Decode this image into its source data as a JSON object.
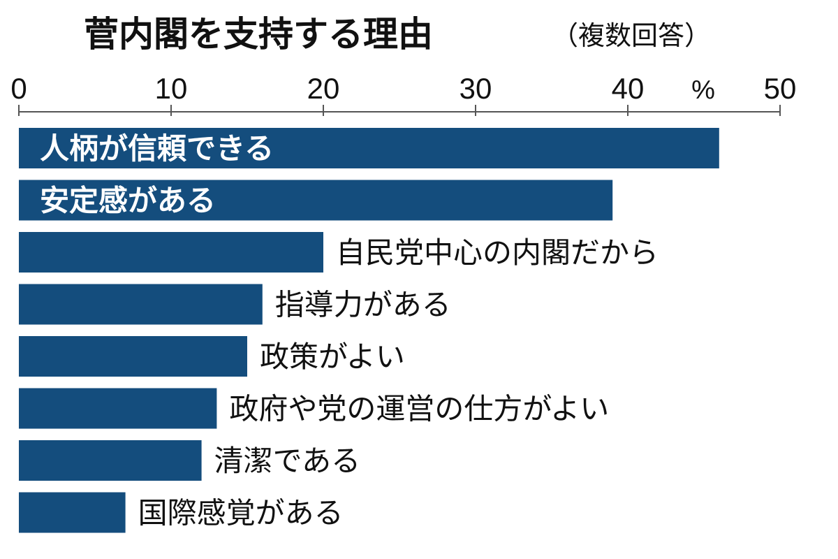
{
  "chart_data": {
    "type": "bar",
    "orientation": "horizontal",
    "title": "菅内閣を支持する理由",
    "subtitle": "（複数回答）",
    "unit": "%",
    "xlim": [
      0,
      50
    ],
    "xticks": [
      0,
      10,
      20,
      30,
      40,
      50
    ],
    "grid": false,
    "categories": [
      "人柄が信頼できる",
      "安定感がある",
      "自民党中心の内閣だから",
      "指導力がある",
      "政策がよい",
      "政府や党の運営の仕方がよい",
      "清潔である",
      "国際感覚がある"
    ],
    "values": [
      46,
      39,
      20,
      16,
      15,
      13,
      12,
      7
    ],
    "label_inside": [
      true,
      true,
      false,
      false,
      false,
      false,
      false,
      false
    ],
    "colors": {
      "bar": "#144d7d",
      "axis": "#555555",
      "label_inside": "#ffffff",
      "text": "#111111"
    }
  }
}
